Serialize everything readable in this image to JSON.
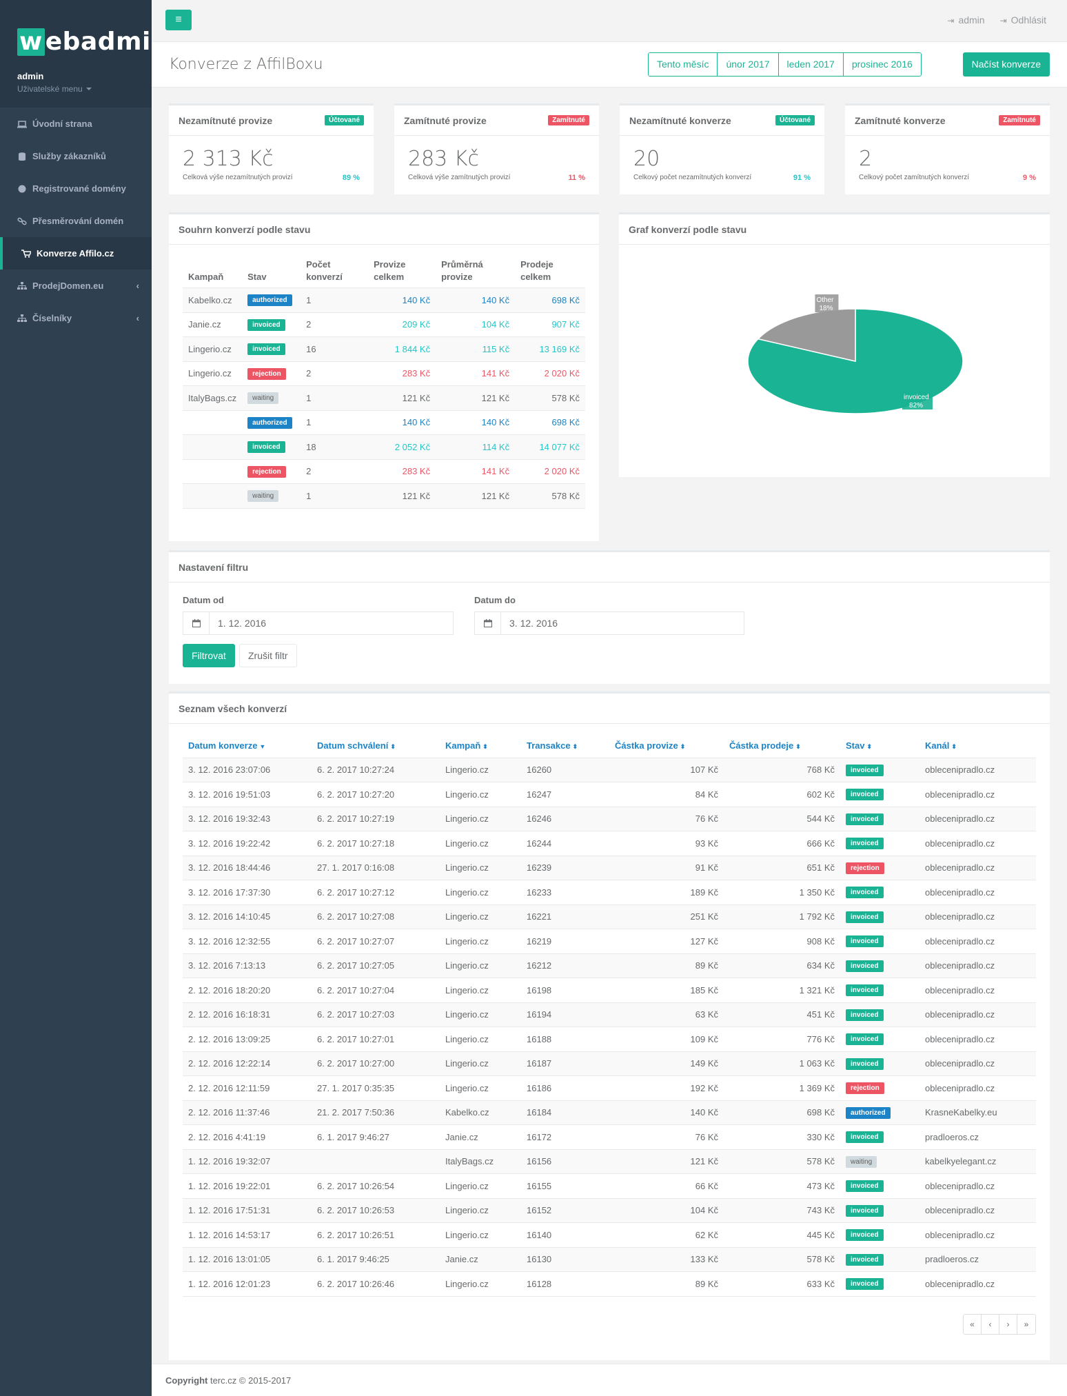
{
  "brand": {
    "logo_w": "w",
    "logo_rest": "ebadmin"
  },
  "sidebar": {
    "user": "admin",
    "user_menu": "Uživatelské menu",
    "items": [
      {
        "label": "Úvodní strana",
        "icon": "laptop-icon"
      },
      {
        "label": "Služby zákazníků",
        "icon": "database-icon"
      },
      {
        "label": "Registrované domény",
        "icon": "globe-icon"
      },
      {
        "label": "Přesměrování domén",
        "icon": "link-icon"
      },
      {
        "label": "Konverze Affilo.cz",
        "icon": "cart-icon"
      },
      {
        "label": "ProdejDomen.eu",
        "icon": "sitemap-icon"
      },
      {
        "label": "Číselníky",
        "icon": "sitemap-icon"
      }
    ]
  },
  "topbar": {
    "user": "admin",
    "logout": "Odhlásit"
  },
  "heading": {
    "title": "Konverze z AffilBoxu",
    "periods": [
      "Tento měsíc",
      "únor 2017",
      "leden 2017",
      "prosinec 2016"
    ],
    "load_button": "Načíst konverze"
  },
  "widgets": [
    {
      "title": "Nezamítnuté provize",
      "badge": "Účtované",
      "value": "2 313 Kč",
      "desc": "Celková výše nezamítnutých provizí",
      "pct": "89 %"
    },
    {
      "title": "Zamítnuté provize",
      "badge": "Zamítnuté",
      "value": "283 Kč",
      "desc": "Celková výše zamítnutých provizí",
      "pct": "11 %"
    },
    {
      "title": "Nezamítnuté konverze",
      "badge": "Účtované",
      "value": "20",
      "desc": "Celkový počet nezamítnutých konverzí",
      "pct": "91 %"
    },
    {
      "title": "Zamítnuté konverze",
      "badge": "Zamítnuté",
      "value": "2",
      "desc": "Celkový počet zamítnutých konverzí",
      "pct": "9 %"
    }
  ],
  "summary": {
    "title": "Souhrn konverzí podle stavu",
    "headers": [
      "Kampaň",
      "Stav",
      "Počet konverzí",
      "Provize celkem",
      "Průměrná provize",
      "Prodeje celkem"
    ],
    "rows": [
      {
        "campaign": "Kabelko.cz",
        "status": "authorized",
        "count": "1",
        "prov": "140 Kč",
        "avg": "140 Kč",
        "sales": "698 Kč"
      },
      {
        "campaign": "Janie.cz",
        "status": "invoiced",
        "count": "2",
        "prov": "209 Kč",
        "avg": "104 Kč",
        "sales": "907 Kč"
      },
      {
        "campaign": "Lingerio.cz",
        "status": "invoiced",
        "count": "16",
        "prov": "1 844 Kč",
        "avg": "115 Kč",
        "sales": "13 169 Kč"
      },
      {
        "campaign": "Lingerio.cz",
        "status": "rejection",
        "count": "2",
        "prov": "283 Kč",
        "avg": "141 Kč",
        "sales": "2 020 Kč"
      },
      {
        "campaign": "ItalyBags.cz",
        "status": "waiting",
        "count": "1",
        "prov": "121 Kč",
        "avg": "121 Kč",
        "sales": "578 Kč"
      },
      {
        "campaign": "",
        "status": "authorized",
        "count": "1",
        "prov": "140 Kč",
        "avg": "140 Kč",
        "sales": "698 Kč"
      },
      {
        "campaign": "",
        "status": "invoiced",
        "count": "18",
        "prov": "2 052 Kč",
        "avg": "114 Kč",
        "sales": "14 077 Kč"
      },
      {
        "campaign": "",
        "status": "rejection",
        "count": "2",
        "prov": "283 Kč",
        "avg": "141 Kč",
        "sales": "2 020 Kč"
      },
      {
        "campaign": "",
        "status": "waiting",
        "count": "1",
        "prov": "121 Kč",
        "avg": "121 Kč",
        "sales": "578 Kč"
      }
    ]
  },
  "pie": {
    "title": "Graf konverzí podle stavu",
    "colors": {
      "invoiced": "#1ab394",
      "Other": "#999999"
    }
  },
  "chart_data": {
    "type": "pie",
    "title": "Graf konverzí podle stavu",
    "slices": [
      {
        "label": "invoiced",
        "value": 82,
        "display": "82%"
      },
      {
        "label": "Other",
        "value": 18,
        "display": "18%"
      }
    ]
  },
  "filter": {
    "title": "Nastavení filtru",
    "from_label": "Datum od",
    "from_value": "1. 12. 2016",
    "to_label": "Datum do",
    "to_value": "3. 12. 2016",
    "filter_button": "Filtrovat",
    "reset_button": "Zrušit filtr"
  },
  "list": {
    "title": "Seznam všech konverzí",
    "headers": [
      "Datum konverze",
      "Datum schválení",
      "Kampaň",
      "Transakce",
      "Částka provize",
      "Částka prodeje",
      "Stav",
      "Kanál"
    ],
    "rows": [
      [
        "3. 12. 2016 23:07:06",
        "6. 2. 2017 10:27:24",
        "Lingerio.cz",
        "16260",
        "107 Kč",
        "768 Kč",
        "invoiced",
        "oblecenipradlo.cz"
      ],
      [
        "3. 12. 2016 19:51:03",
        "6. 2. 2017 10:27:20",
        "Lingerio.cz",
        "16247",
        "84 Kč",
        "602 Kč",
        "invoiced",
        "oblecenipradlo.cz"
      ],
      [
        "3. 12. 2016 19:32:43",
        "6. 2. 2017 10:27:19",
        "Lingerio.cz",
        "16246",
        "76 Kč",
        "544 Kč",
        "invoiced",
        "oblecenipradlo.cz"
      ],
      [
        "3. 12. 2016 19:22:42",
        "6. 2. 2017 10:27:18",
        "Lingerio.cz",
        "16244",
        "93 Kč",
        "666 Kč",
        "invoiced",
        "oblecenipradlo.cz"
      ],
      [
        "3. 12. 2016 18:44:46",
        "27. 1. 2017 0:16:08",
        "Lingerio.cz",
        "16239",
        "91 Kč",
        "651 Kč",
        "rejection",
        "oblecenipradlo.cz"
      ],
      [
        "3. 12. 2016 17:37:30",
        "6. 2. 2017 10:27:12",
        "Lingerio.cz",
        "16233",
        "189 Kč",
        "1 350 Kč",
        "invoiced",
        "oblecenipradlo.cz"
      ],
      [
        "3. 12. 2016 14:10:45",
        "6. 2. 2017 10:27:08",
        "Lingerio.cz",
        "16221",
        "251 Kč",
        "1 792 Kč",
        "invoiced",
        "oblecenipradlo.cz"
      ],
      [
        "3. 12. 2016 12:32:55",
        "6. 2. 2017 10:27:07",
        "Lingerio.cz",
        "16219",
        "127 Kč",
        "908 Kč",
        "invoiced",
        "oblecenipradlo.cz"
      ],
      [
        "3. 12. 2016 7:13:13",
        "6. 2. 2017 10:27:05",
        "Lingerio.cz",
        "16212",
        "89 Kč",
        "634 Kč",
        "invoiced",
        "oblecenipradlo.cz"
      ],
      [
        "2. 12. 2016 18:20:20",
        "6. 2. 2017 10:27:04",
        "Lingerio.cz",
        "16198",
        "185 Kč",
        "1 321 Kč",
        "invoiced",
        "oblecenipradlo.cz"
      ],
      [
        "2. 12. 2016 16:18:31",
        "6. 2. 2017 10:27:03",
        "Lingerio.cz",
        "16194",
        "63 Kč",
        "451 Kč",
        "invoiced",
        "oblecenipradlo.cz"
      ],
      [
        "2. 12. 2016 13:09:25",
        "6. 2. 2017 10:27:01",
        "Lingerio.cz",
        "16188",
        "109 Kč",
        "776 Kč",
        "invoiced",
        "oblecenipradlo.cz"
      ],
      [
        "2. 12. 2016 12:22:14",
        "6. 2. 2017 10:27:00",
        "Lingerio.cz",
        "16187",
        "149 Kč",
        "1 063 Kč",
        "invoiced",
        "oblecenipradlo.cz"
      ],
      [
        "2. 12. 2016 12:11:59",
        "27. 1. 2017 0:35:35",
        "Lingerio.cz",
        "16186",
        "192 Kč",
        "1 369 Kč",
        "rejection",
        "oblecenipradlo.cz"
      ],
      [
        "2. 12. 2016 11:37:46",
        "21. 2. 2017 7:50:36",
        "Kabelko.cz",
        "16184",
        "140 Kč",
        "698 Kč",
        "authorized",
        "KrasneKabelky.eu"
      ],
      [
        "2. 12. 2016 4:41:19",
        "6. 1. 2017 9:46:27",
        "Janie.cz",
        "16172",
        "76 Kč",
        "330 Kč",
        "invoiced",
        "pradloeros.cz"
      ],
      [
        "1. 12. 2016 19:32:07",
        "",
        "ItalyBags.cz",
        "16156",
        "121 Kč",
        "578 Kč",
        "waiting",
        "kabelkyelegant.cz"
      ],
      [
        "1. 12. 2016 19:22:01",
        "6. 2. 2017 10:26:54",
        "Lingerio.cz",
        "16155",
        "66 Kč",
        "473 Kč",
        "invoiced",
        "oblecenipradlo.cz"
      ],
      [
        "1. 12. 2016 17:51:31",
        "6. 2. 2017 10:26:53",
        "Lingerio.cz",
        "16152",
        "104 Kč",
        "743 Kč",
        "invoiced",
        "oblecenipradlo.cz"
      ],
      [
        "1. 12. 2016 14:53:17",
        "6. 2. 2017 10:26:51",
        "Lingerio.cz",
        "16140",
        "62 Kč",
        "445 Kč",
        "invoiced",
        "oblecenipradlo.cz"
      ],
      [
        "1. 12. 2016 13:01:05",
        "6. 1. 2017 9:46:25",
        "Janie.cz",
        "16130",
        "133 Kč",
        "578 Kč",
        "invoiced",
        "pradloeros.cz"
      ],
      [
        "1. 12. 2016 12:01:23",
        "6. 2. 2017 10:26:46",
        "Lingerio.cz",
        "16128",
        "89 Kč",
        "633 Kč",
        "invoiced",
        "oblecenipradlo.cz"
      ]
    ],
    "pager": [
      "«",
      "‹",
      "›",
      "»"
    ]
  },
  "footer": {
    "copyright_bold": "Copyright",
    "copyright_rest": " terc.cz © 2015-2017"
  }
}
